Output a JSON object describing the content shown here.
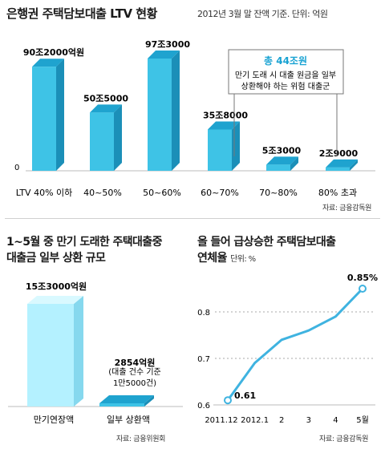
{
  "header": {
    "title": "은행권 주택담보대출 LTV 현황",
    "subtitle": "2012년 3월 말 잔액 기준. 단위: 억원"
  },
  "chart_data": [
    {
      "type": "bar",
      "categories": [
        "LTV 40% 이하",
        "40~50%",
        "50~60%",
        "60~70%",
        "70~80%",
        "80% 초과"
      ],
      "values": [
        902000,
        505000,
        973000,
        358000,
        53000,
        29000
      ],
      "value_labels": [
        "90조2000억원",
        "50조5000",
        "97조3000",
        "35조8000",
        "5조3000",
        "2조9000"
      ],
      "baseline_label": "0",
      "callout": {
        "title": "총 44조원",
        "text_line1": "만기 도래 시 대출 원금을 일부",
        "text_line2": "상환해야 하는 위험 대출군"
      },
      "source": "자료: 금융감독원"
    },
    {
      "type": "bar",
      "title_line1": "1~5월 중 만기 도래한 주택대출중",
      "title_line2": "대출금 일부 상환 규모",
      "categories": [
        "만기연장액",
        "일부 상환액"
      ],
      "values": [
        153000,
        2854
      ],
      "value_labels": [
        "15조3000억원",
        "2854억원"
      ],
      "note_line1": "(대출 건수 기준",
      "note_line2": "1만5000건)",
      "source": "자료: 금융위원회"
    },
    {
      "type": "line",
      "title_line1": "올 들어 급상승한 주택담보대출",
      "title_line2": "연체율",
      "unit": "단위: %",
      "x": [
        "2011.12",
        "2012.1",
        "2",
        "3",
        "4",
        "5월"
      ],
      "y": [
        0.61,
        0.69,
        0.74,
        0.76,
        0.79,
        0.85
      ],
      "y_ticks": [
        "0.6",
        "0.7",
        "0.8"
      ],
      "ylim": [
        0.6,
        0.85
      ],
      "first_label": "0.61",
      "last_label": "0.85%",
      "color": "#3fb3e0",
      "source": "자료: 금융감독원"
    }
  ],
  "colors": {
    "bar_front": "#3ec3e6",
    "bar_top": "#1fa3cf",
    "bar_side": "#1b8fb8",
    "light_front": "#b4f1ff",
    "light_top": "#d9f9ff",
    "light_side": "#86d8ee",
    "line": "#3fb3e0",
    "callout_title": "#19a3d3"
  }
}
